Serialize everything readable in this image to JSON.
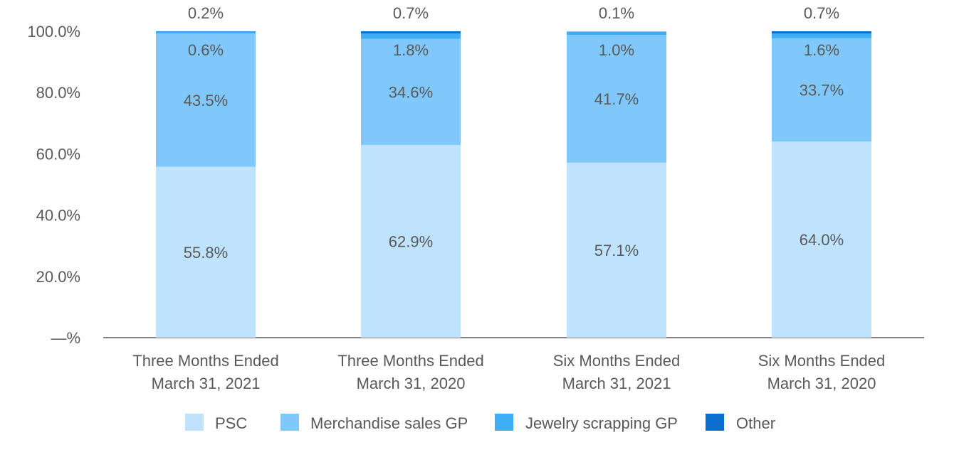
{
  "chart_data": {
    "type": "bar",
    "stacked": true,
    "percent": true,
    "ylim": [
      0,
      100
    ],
    "y_ticks": [
      {
        "value": 0,
        "label": "—%"
      },
      {
        "value": 20,
        "label": "20.0%"
      },
      {
        "value": 40,
        "label": "40.0%"
      },
      {
        "value": 60,
        "label": "60.0%"
      },
      {
        "value": 80,
        "label": "80.0%"
      },
      {
        "value": 100,
        "label": "100.0%"
      }
    ],
    "categories": [
      [
        "Three Months Ended",
        "March 31, 2021"
      ],
      [
        "Three Months Ended",
        "March 31, 2020"
      ],
      [
        "Six Months Ended",
        "March 31, 2021"
      ],
      [
        "Six Months Ended",
        "March 31, 2020"
      ]
    ],
    "series": [
      {
        "name": "PSC",
        "color": "#bfe3fc",
        "values": [
          55.8,
          62.9,
          57.1,
          64.0
        ],
        "labels": [
          "55.8%",
          "62.9%",
          "57.1%",
          "64.0%"
        ]
      },
      {
        "name": "Merchandise sales GP",
        "color": "#80c8fb",
        "values": [
          43.5,
          34.6,
          41.7,
          33.7
        ],
        "labels": [
          "43.5%",
          "34.6%",
          "41.7%",
          "33.7%"
        ]
      },
      {
        "name": "Jewelry scrapping GP",
        "color": "#40aef7",
        "values": [
          0.6,
          1.8,
          1.0,
          1.6
        ],
        "labels": [
          "0.6%",
          "1.8%",
          "1.0%",
          "1.6%"
        ]
      },
      {
        "name": "Other",
        "color": "#0b6fd0",
        "values": [
          0.2,
          0.7,
          0.1,
          0.7
        ],
        "labels": [
          "0.2%",
          "0.7%",
          "0.1%",
          "0.7%"
        ]
      }
    ],
    "grid": false,
    "legend": "bottom",
    "colors": {
      "text": "#595959",
      "axis": "#595959"
    }
  }
}
